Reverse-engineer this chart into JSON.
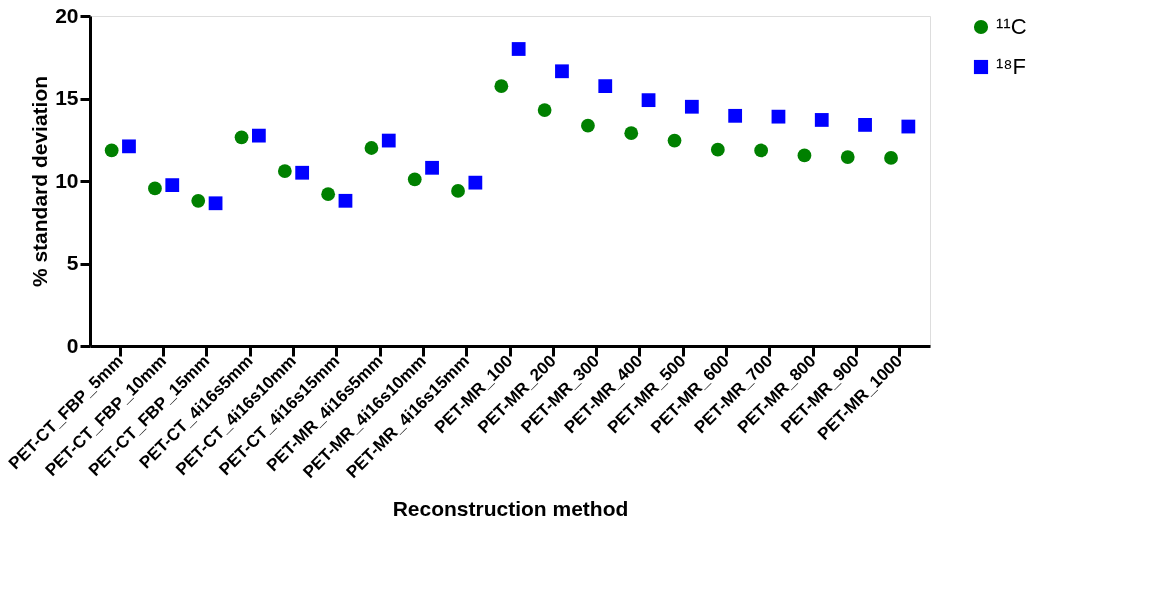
{
  "chart_data": {
    "type": "scatter",
    "xlabel": "Reconstruction method",
    "ylabel": "% standard deviation",
    "categories": [
      "PET-CT_FBP_5mm",
      "PET-CT_FBP_10mm",
      "PET-CT_FBP_15mm",
      "PET-CT_4i16s5mm",
      "PET-CT_4i16s10mm",
      "PET-CT_4i16s15mm",
      "PET-MR_4i16s5mm",
      "PET-MR_4i16s10mm",
      "PET-MR_4i16s15mm",
      "PET-MR_100",
      "PET-MR_200",
      "PET-MR_300",
      "PET-MR_400",
      "PET-MR_500",
      "PET-MR_600",
      "PET-MR_700",
      "PET-MR_800",
      "PET-MR_900",
      "PET-MR_1000"
    ],
    "series": [
      {
        "name": "¹¹C",
        "color": "#008000",
        "marker": "circle",
        "values": [
          11.85,
          9.55,
          8.8,
          12.65,
          10.6,
          9.2,
          12.0,
          10.1,
          9.4,
          15.75,
          14.3,
          13.35,
          12.9,
          12.45,
          11.9,
          11.85,
          11.55,
          11.45,
          11.4
        ]
      },
      {
        "name": "¹⁸F",
        "color": "#0000ff",
        "marker": "square",
        "values": [
          12.1,
          9.75,
          8.65,
          12.75,
          10.5,
          8.8,
          12.45,
          10.8,
          9.9,
          18.0,
          16.65,
          15.75,
          14.9,
          14.5,
          13.95,
          13.9,
          13.7,
          13.4,
          13.3
        ]
      }
    ],
    "ylim": [
      0,
      20
    ],
    "yticks": [
      0,
      5,
      10,
      15,
      20
    ],
    "grid": false,
    "legend": "top right"
  }
}
